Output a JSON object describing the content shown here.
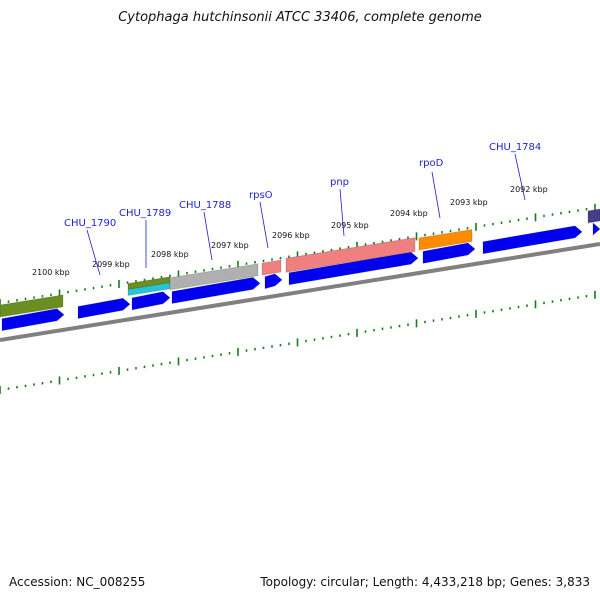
{
  "title": "Cytophaga hutchinsonii ATCC 33406, complete genome",
  "footer": {
    "accession": "Accession: NC_008255",
    "topology": "Topology: circular; Length: 4,433,218 bp; Genes: 3,833"
  },
  "kbp_labels": [
    "2100 kbp",
    "2099 kbp",
    "2098 kbp",
    "2097 kbp",
    "2096 kbp",
    "2095 kbp",
    "2094 kbp",
    "2093 kbp",
    "2092 kbp"
  ],
  "gene_labels": [
    "CHU_1790",
    "CHU_1789",
    "CHU_1788",
    "rpsO",
    "pnp",
    "rpoD",
    "CHU_1784"
  ],
  "colors": {
    "cds_blue": "#0000ee",
    "olive": "#6b8e23",
    "cyan": "#22c6d6",
    "grey": "#b0b0b0",
    "salmon": "#f08080",
    "orange": "#ff8c00",
    "purple": "#483d8b",
    "backbone": "#808080",
    "tick": "#1a7a1a",
    "gene_label": "#1f1fd0"
  }
}
